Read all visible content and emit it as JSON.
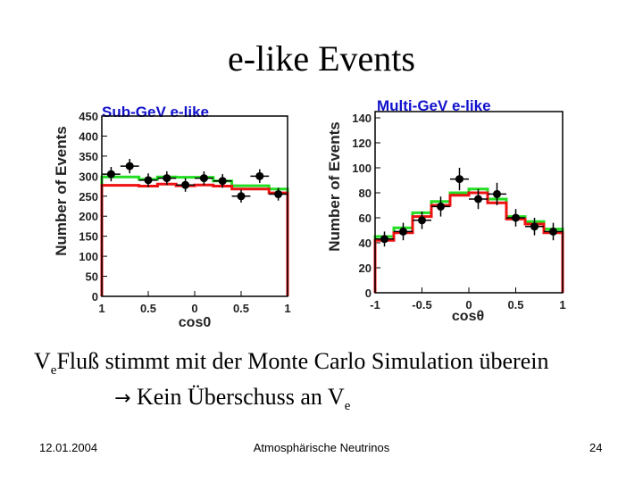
{
  "slide": {
    "title": "e-like Events",
    "body_line1_v": "V",
    "body_line1_sub": "e",
    "body_line1_rest": "Fluß stimmt mit der Monte Carlo Simulation überein",
    "body_line2_arrow": "→",
    "body_line2_text": " Kein Überschuss an V",
    "body_line2_sub": "e",
    "footer_date": "12.01.2004",
    "footer_center": "Atmosphärische Neutrinos",
    "footer_page": "24"
  },
  "colors": {
    "data_points": "#000000",
    "mc_green": "#22dd22",
    "mc_red": "#ee1111",
    "title_blue": "#1111cc",
    "axis_label": "#222222"
  },
  "chart_data": [
    {
      "type": "histogram",
      "title": "Sub-GeV e-like",
      "ylabel": "Number of Events",
      "xlabel": "cos0",
      "xlim": [
        -1,
        1
      ],
      "ylim": [
        0,
        450
      ],
      "yticks": [
        0,
        50,
        100,
        150,
        200,
        250,
        300,
        350,
        400,
        450
      ],
      "xtick_labels": [
        "1",
        "0.5",
        "0",
        "0.5",
        "1"
      ],
      "bin_edges": [
        -1,
        -0.8,
        -0.6,
        -0.4,
        -0.2,
        0,
        0.2,
        0.4,
        0.6,
        0.8,
        1
      ],
      "series": [
        {
          "name": "",
          "style": "points-errorbars",
          "x": [
            -0.9,
            -0.7,
            -0.5,
            -0.3,
            -0.1,
            0.1,
            0.3,
            0.5,
            0.7,
            0.9
          ],
          "values": [
            305,
            325,
            290,
            295,
            278,
            295,
            288,
            250,
            300,
            255
          ],
          "errors": [
            18,
            18,
            17,
            17,
            17,
            17,
            17,
            16,
            17,
            16
          ]
        },
        {
          "name": "",
          "style": "step",
          "color": "green",
          "values": [
            298,
            298,
            292,
            298,
            297,
            297,
            288,
            276,
            276,
            268
          ]
        },
        {
          "name": "",
          "style": "step",
          "color": "red",
          "values": [
            277,
            277,
            275,
            280,
            276,
            278,
            275,
            268,
            268,
            258
          ]
        }
      ]
    },
    {
      "type": "histogram",
      "title": "Multi-GeV e-like",
      "ylabel": "Number of Events",
      "xlabel": "cosθ",
      "xlim": [
        -1,
        1
      ],
      "ylim": [
        0,
        145
      ],
      "yticks": [
        0,
        20,
        40,
        60,
        80,
        100,
        120,
        140
      ],
      "xtick_labels": [
        "-1",
        "-0.5",
        "0",
        "0.5",
        "1"
      ],
      "bin_edges": [
        -1,
        -0.8,
        -0.6,
        -0.4,
        -0.2,
        0,
        0.2,
        0.4,
        0.6,
        0.8,
        1
      ],
      "series": [
        {
          "name": "",
          "style": "points-errorbars",
          "x": [
            -0.9,
            -0.7,
            -0.5,
            -0.3,
            -0.1,
            0.1,
            0.3,
            0.5,
            0.7,
            0.9
          ],
          "values": [
            43,
            49,
            58,
            69,
            91,
            75,
            79,
            60,
            53,
            49
          ],
          "errors": [
            6,
            7,
            7,
            8,
            9,
            8,
            9,
            7,
            7,
            7
          ]
        },
        {
          "name": "",
          "style": "step",
          "color": "green",
          "values": [
            45,
            52,
            64,
            73,
            80,
            83,
            75,
            61,
            57,
            51
          ]
        },
        {
          "name": "",
          "style": "step",
          "color": "red",
          "values": [
            42,
            48,
            61,
            70,
            78,
            80,
            72,
            59,
            55,
            48
          ]
        }
      ]
    }
  ]
}
